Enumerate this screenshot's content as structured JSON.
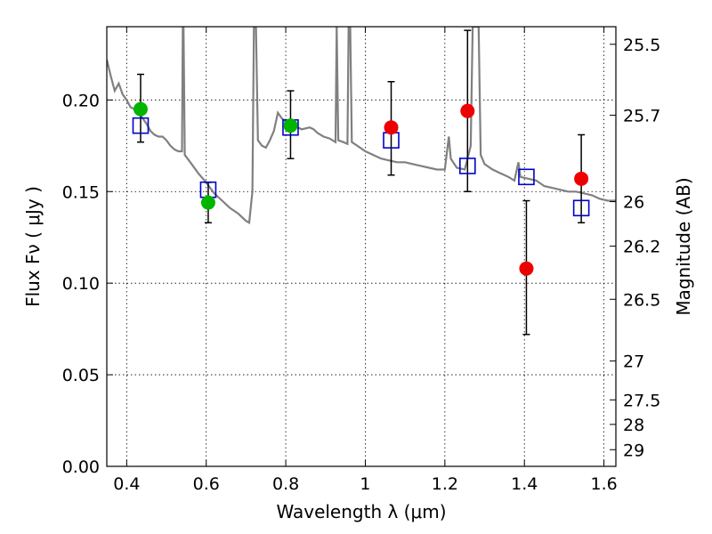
{
  "chart_data": {
    "type": "scatter",
    "title": "",
    "xlabel": "Wavelength  λ (μm)",
    "ylabel": "Flux  Fν  ( μJy )",
    "ylabel_right": "Magnitude (AB)",
    "xlim": [
      0.35,
      1.63
    ],
    "ylim": [
      0.0,
      0.24
    ],
    "grid": true,
    "x_ticks": [
      0.4,
      0.6,
      0.8,
      1.0,
      1.2,
      1.4,
      1.6
    ],
    "x_tick_labels": [
      "0.4",
      "0.6",
      "0.8",
      "1",
      "1.2",
      "1.4",
      "1.6"
    ],
    "y_ticks": [
      0.0,
      0.05,
      0.1,
      0.15,
      0.2
    ],
    "y_tick_labels": [
      "0.00",
      "0.05",
      "0.10",
      "0.15",
      "0.20"
    ],
    "right_ticks": [
      {
        "label": "25.5",
        "flux": 0.2304
      },
      {
        "label": "25.7",
        "flux": 0.1917
      },
      {
        "label": "26",
        "flux": 0.1445
      },
      {
        "label": "26.2",
        "flux": 0.1202
      },
      {
        "label": "26.5",
        "flux": 0.0912
      },
      {
        "label": "27",
        "flux": 0.0575
      },
      {
        "label": "27.5",
        "flux": 0.0363
      },
      {
        "label": "28",
        "flux": 0.0229
      },
      {
        "label": "29",
        "flux": 0.0091
      }
    ],
    "series": [
      {
        "kind": "spectrum",
        "color": "#808080",
        "points": [
          [
            0.35,
            0.222
          ],
          [
            0.36,
            0.213
          ],
          [
            0.37,
            0.205
          ],
          [
            0.38,
            0.209
          ],
          [
            0.39,
            0.203
          ],
          [
            0.4,
            0.2
          ],
          [
            0.41,
            0.196
          ],
          [
            0.42,
            0.195
          ],
          [
            0.43,
            0.193
          ],
          [
            0.44,
            0.19
          ],
          [
            0.45,
            0.187
          ],
          [
            0.46,
            0.183
          ],
          [
            0.47,
            0.181
          ],
          [
            0.48,
            0.18
          ],
          [
            0.49,
            0.18
          ],
          [
            0.5,
            0.178
          ],
          [
            0.51,
            0.175
          ],
          [
            0.52,
            0.173
          ],
          [
            0.53,
            0.172
          ],
          [
            0.539,
            0.172
          ],
          [
            0.541,
            0.24
          ],
          [
            0.543,
            0.24
          ],
          [
            0.546,
            0.17
          ],
          [
            0.56,
            0.166
          ],
          [
            0.58,
            0.16
          ],
          [
            0.6,
            0.155
          ],
          [
            0.62,
            0.149
          ],
          [
            0.64,
            0.145
          ],
          [
            0.66,
            0.141
          ],
          [
            0.68,
            0.138
          ],
          [
            0.7,
            0.134
          ],
          [
            0.708,
            0.133
          ],
          [
            0.716,
            0.15
          ],
          [
            0.72,
            0.24
          ],
          [
            0.725,
            0.24
          ],
          [
            0.73,
            0.178
          ],
          [
            0.74,
            0.175
          ],
          [
            0.75,
            0.174
          ],
          [
            0.76,
            0.178
          ],
          [
            0.77,
            0.183
          ],
          [
            0.78,
            0.193
          ],
          [
            0.79,
            0.19
          ],
          [
            0.8,
            0.188
          ],
          [
            0.81,
            0.187
          ],
          [
            0.82,
            0.186
          ],
          [
            0.84,
            0.184
          ],
          [
            0.86,
            0.185
          ],
          [
            0.87,
            0.184
          ],
          [
            0.88,
            0.182
          ],
          [
            0.895,
            0.18
          ],
          [
            0.91,
            0.179
          ],
          [
            0.925,
            0.177
          ],
          [
            0.928,
            0.24
          ],
          [
            0.932,
            0.178
          ],
          [
            0.945,
            0.177
          ],
          [
            0.955,
            0.176
          ],
          [
            0.958,
            0.24
          ],
          [
            0.962,
            0.24
          ],
          [
            0.966,
            0.177
          ],
          [
            0.98,
            0.175
          ],
          [
            1.0,
            0.172
          ],
          [
            1.02,
            0.17
          ],
          [
            1.04,
            0.168
          ],
          [
            1.06,
            0.167
          ],
          [
            1.08,
            0.166
          ],
          [
            1.1,
            0.166
          ],
          [
            1.12,
            0.165
          ],
          [
            1.14,
            0.164
          ],
          [
            1.16,
            0.163
          ],
          [
            1.18,
            0.162
          ],
          [
            1.2,
            0.162
          ],
          [
            1.21,
            0.18
          ],
          [
            1.215,
            0.168
          ],
          [
            1.23,
            0.163
          ],
          [
            1.25,
            0.162
          ],
          [
            1.265,
            0.175
          ],
          [
            1.27,
            0.24
          ],
          [
            1.285,
            0.24
          ],
          [
            1.29,
            0.17
          ],
          [
            1.3,
            0.165
          ],
          [
            1.32,
            0.162
          ],
          [
            1.34,
            0.16
          ],
          [
            1.36,
            0.158
          ],
          [
            1.375,
            0.156
          ],
          [
            1.385,
            0.166
          ],
          [
            1.39,
            0.158
          ],
          [
            1.41,
            0.157
          ],
          [
            1.43,
            0.156
          ],
          [
            1.45,
            0.153
          ],
          [
            1.47,
            0.152
          ],
          [
            1.49,
            0.151
          ],
          [
            1.51,
            0.15
          ],
          [
            1.53,
            0.15
          ],
          [
            1.55,
            0.149
          ],
          [
            1.57,
            0.148
          ],
          [
            1.59,
            0.146
          ],
          [
            1.61,
            0.145
          ],
          [
            1.63,
            0.145
          ]
        ]
      },
      {
        "kind": "model-squares",
        "color": "#0000cc",
        "points": [
          [
            0.435,
            0.186
          ],
          [
            0.605,
            0.151
          ],
          [
            0.812,
            0.185
          ],
          [
            1.065,
            0.178
          ],
          [
            1.257,
            0.164
          ],
          [
            1.405,
            0.158
          ],
          [
            1.543,
            0.141
          ]
        ]
      },
      {
        "kind": "green-points",
        "color": "#00b400",
        "points": [
          {
            "x": 0.435,
            "y": 0.195,
            "ylow": 0.177,
            "yhigh": 0.214
          },
          {
            "x": 0.605,
            "y": 0.144,
            "ylow": 0.133,
            "yhigh": 0.155
          },
          {
            "x": 0.812,
            "y": 0.186,
            "ylow": 0.168,
            "yhigh": 0.205
          }
        ]
      },
      {
        "kind": "red-points",
        "color": "#ee0000",
        "points": [
          {
            "x": 1.065,
            "y": 0.185,
            "ylow": 0.159,
            "yhigh": 0.21
          },
          {
            "x": 1.257,
            "y": 0.194,
            "ylow": 0.15,
            "yhigh": 0.238
          },
          {
            "x": 1.405,
            "y": 0.108,
            "ylow": 0.072,
            "yhigh": 0.145
          },
          {
            "x": 1.543,
            "y": 0.157,
            "ylow": 0.133,
            "yhigh": 0.181
          }
        ]
      }
    ]
  }
}
